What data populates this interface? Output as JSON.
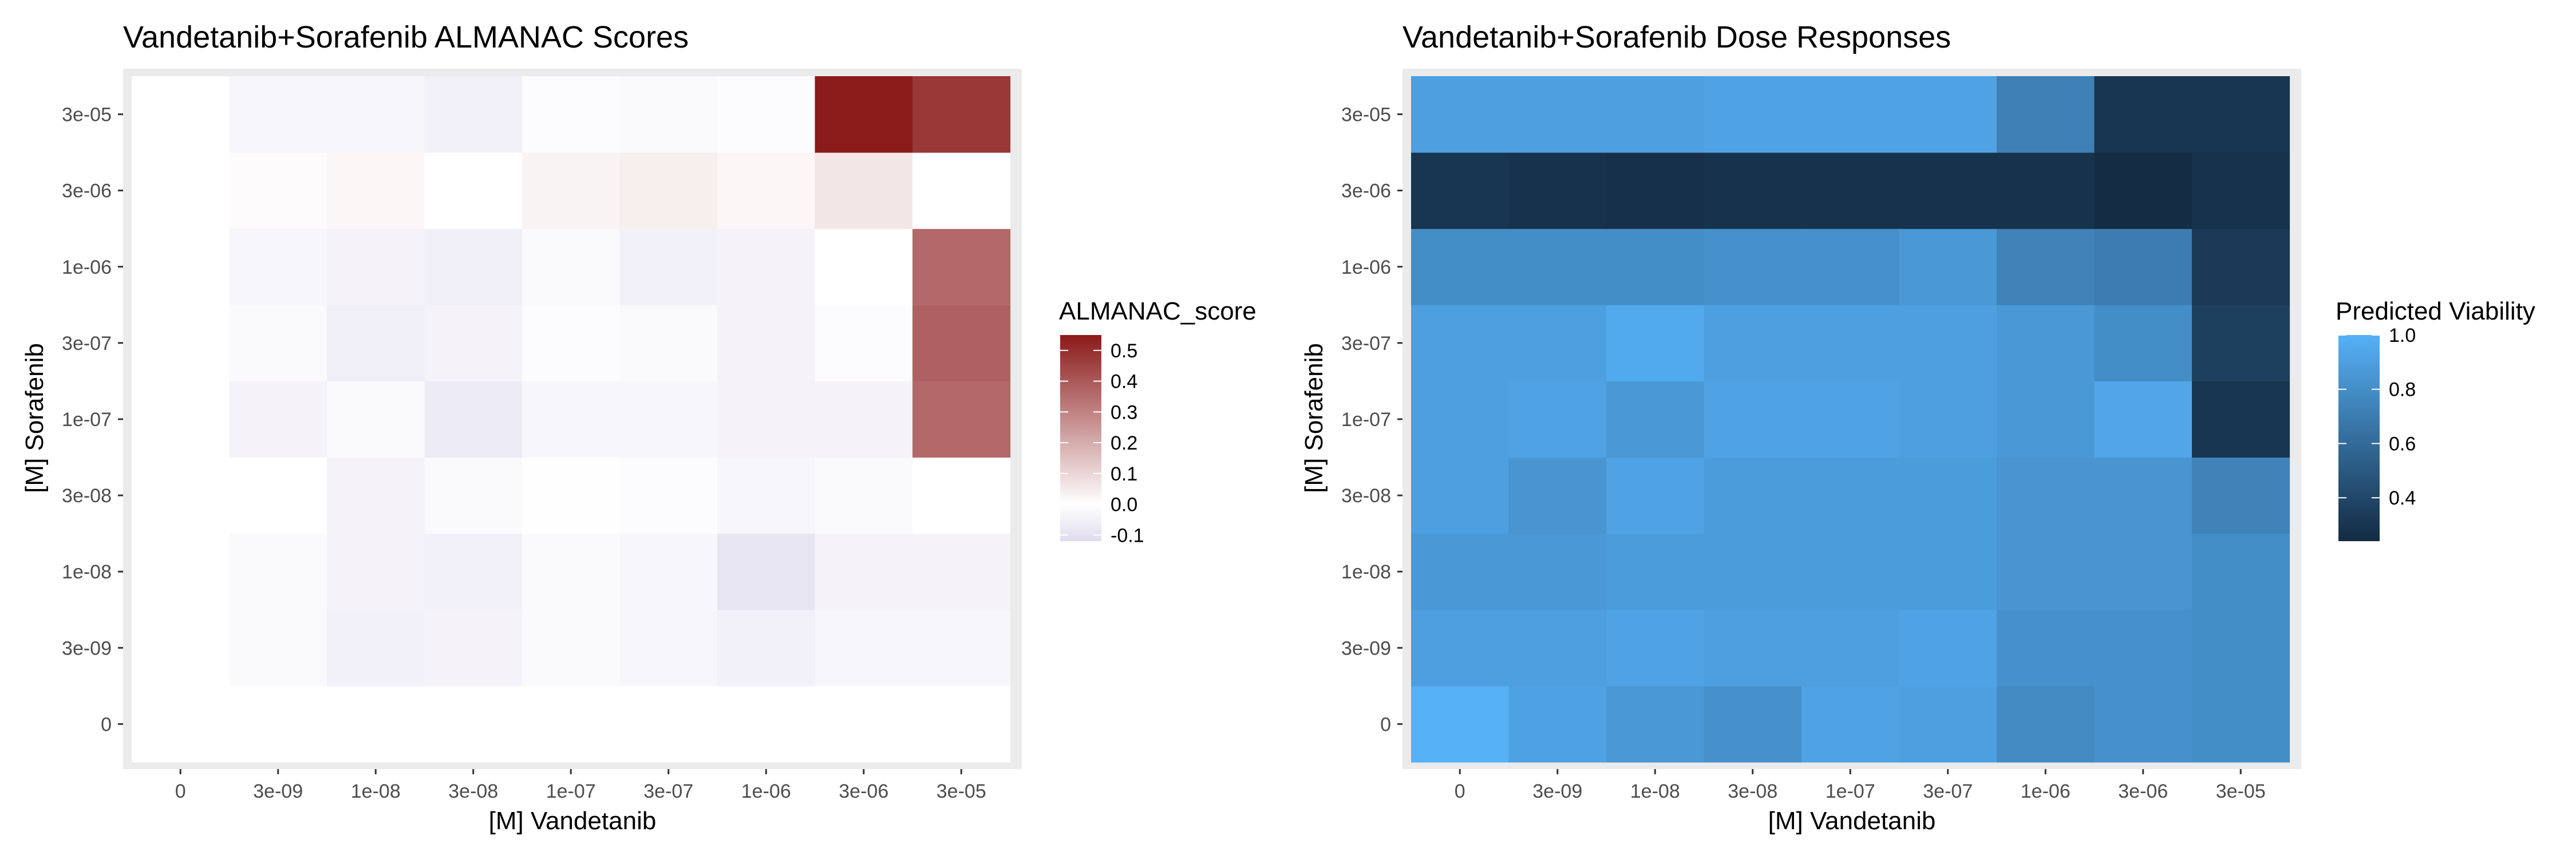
{
  "chart_data": [
    {
      "type": "heatmap",
      "title": "Vandetanib+Sorafenib ALMANAC Scores",
      "xlabel": "[M] Vandetanib",
      "ylabel": "[M] Sorafenib",
      "x_categories": [
        "0",
        "3e-09",
        "1e-08",
        "3e-08",
        "1e-07",
        "3e-07",
        "1e-06",
        "3e-06",
        "3e-05"
      ],
      "y_categories": [
        "0",
        "3e-09",
        "1e-08",
        "3e-08",
        "1e-07",
        "3e-07",
        "1e-06",
        "3e-06",
        "3e-05"
      ],
      "values": [
        [
          0,
          0,
          0,
          0,
          0,
          0,
          0,
          0,
          0
        ],
        [
          0,
          -0.02,
          -0.05,
          -0.04,
          -0.02,
          -0.03,
          -0.05,
          -0.03,
          -0.03
        ],
        [
          0,
          -0.02,
          -0.04,
          -0.05,
          -0.02,
          -0.03,
          -0.09,
          -0.04,
          -0.04
        ],
        [
          0,
          0,
          -0.04,
          -0.02,
          -0.005,
          -0.01,
          -0.03,
          -0.02,
          0
        ],
        [
          0,
          -0.04,
          -0.02,
          -0.07,
          -0.03,
          -0.03,
          -0.04,
          -0.04,
          0.36
        ],
        [
          0,
          -0.02,
          -0.06,
          -0.04,
          -0.01,
          -0.02,
          -0.04,
          -0.01,
          0.38
        ],
        [
          0,
          -0.03,
          -0.04,
          -0.06,
          -0.02,
          -0.05,
          -0.04,
          0,
          0.36
        ],
        [
          0,
          0.01,
          0.02,
          0,
          0.03,
          0.04,
          0.02,
          0.06,
          0
        ],
        [
          0,
          -0.03,
          -0.03,
          -0.05,
          -0.01,
          -0.02,
          -0.01,
          0.55,
          0.48
        ]
      ],
      "legend": {
        "title": "ALMANAC_score",
        "ticks": [
          "0.5",
          "0.4",
          "0.3",
          "0.2",
          "0.1",
          "0.0",
          "-0.1"
        ],
        "range": [
          -0.12,
          0.55
        ]
      },
      "colors": {
        "low": "#e0dcee",
        "mid": "#ffffff",
        "high": "#8b1a1a"
      }
    },
    {
      "type": "heatmap",
      "title": "Vandetanib+Sorafenib Dose Responses",
      "xlabel": "[M] Vandetanib",
      "ylabel": "[M] Sorafenib",
      "x_categories": [
        "0",
        "3e-09",
        "1e-08",
        "3e-08",
        "1e-07",
        "3e-07",
        "1e-06",
        "3e-06",
        "3e-05"
      ],
      "y_categories": [
        "0",
        "3e-09",
        "1e-08",
        "3e-08",
        "1e-07",
        "3e-07",
        "1e-06",
        "3e-06",
        "3e-05"
      ],
      "values": [
        [
          1.0,
          0.91,
          0.86,
          0.82,
          0.92,
          0.9,
          0.78,
          0.82,
          0.8
        ],
        [
          0.9,
          0.9,
          0.92,
          0.9,
          0.9,
          0.92,
          0.82,
          0.82,
          0.8
        ],
        [
          0.86,
          0.86,
          0.88,
          0.88,
          0.88,
          0.88,
          0.84,
          0.84,
          0.8
        ],
        [
          0.9,
          0.84,
          0.92,
          0.88,
          0.88,
          0.88,
          0.84,
          0.84,
          0.74
        ],
        [
          0.9,
          0.92,
          0.86,
          0.92,
          0.92,
          0.9,
          0.86,
          0.94,
          0.3
        ],
        [
          0.9,
          0.9,
          0.96,
          0.9,
          0.9,
          0.9,
          0.86,
          0.8,
          0.36
        ],
        [
          0.8,
          0.8,
          0.8,
          0.82,
          0.82,
          0.86,
          0.74,
          0.7,
          0.32
        ],
        [
          0.3,
          0.28,
          0.27,
          0.28,
          0.28,
          0.28,
          0.28,
          0.25,
          0.28
        ],
        [
          0.9,
          0.9,
          0.9,
          0.92,
          0.92,
          0.92,
          0.72,
          0.3,
          0.3
        ]
      ],
      "legend": {
        "title": "Predicted Viability",
        "ticks": [
          "1.0",
          "0.8",
          "0.6",
          "0.4"
        ],
        "range": [
          0.24,
          1.0
        ]
      },
      "colors": {
        "low": "#132b43",
        "high": "#56b1f7"
      }
    }
  ]
}
